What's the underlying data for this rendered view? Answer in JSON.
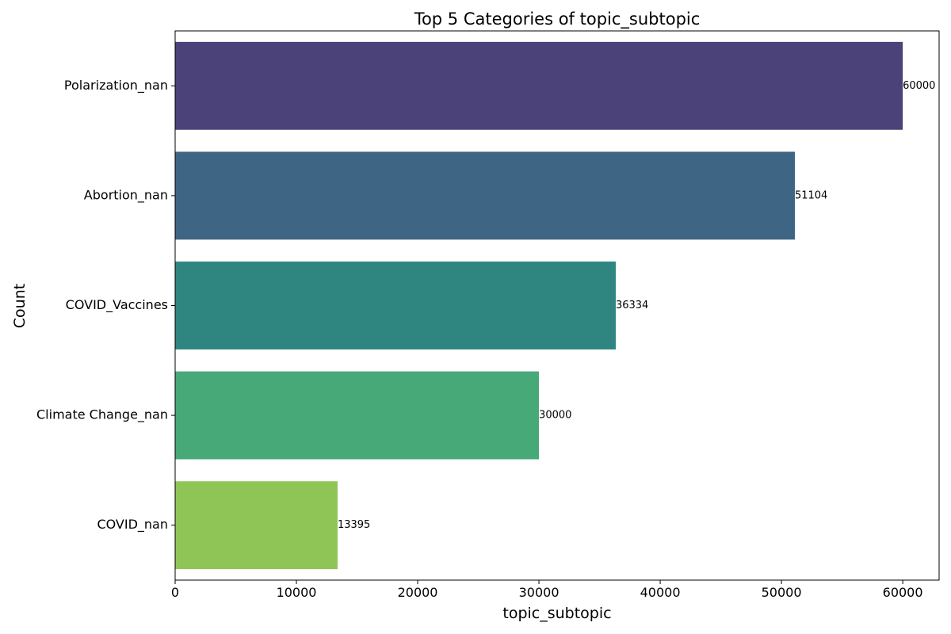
{
  "chart_data": {
    "type": "bar",
    "orientation": "horizontal",
    "title": "Top 5 Categories of topic_subtopic",
    "xlabel": "topic_subtopic",
    "ylabel": "Count",
    "categories": [
      "Polarization_nan",
      "Abortion_nan",
      "COVID_Vaccines",
      "Climate Change_nan",
      "COVID_nan"
    ],
    "values": [
      60000,
      51104,
      36334,
      30000,
      13395
    ],
    "data_labels": [
      "60000",
      "51104",
      "36334",
      "30000",
      "13395"
    ],
    "colors": [
      "#4b4279",
      "#3e6584",
      "#2f8580",
      "#47a878",
      "#8fc556"
    ],
    "xlim": [
      0,
      63000
    ],
    "xticks": [
      0,
      10000,
      20000,
      30000,
      40000,
      50000,
      60000
    ],
    "xtick_labels": [
      "0",
      "10000",
      "20000",
      "30000",
      "40000",
      "50000",
      "60000"
    ],
    "grid": false,
    "legend": "none"
  }
}
